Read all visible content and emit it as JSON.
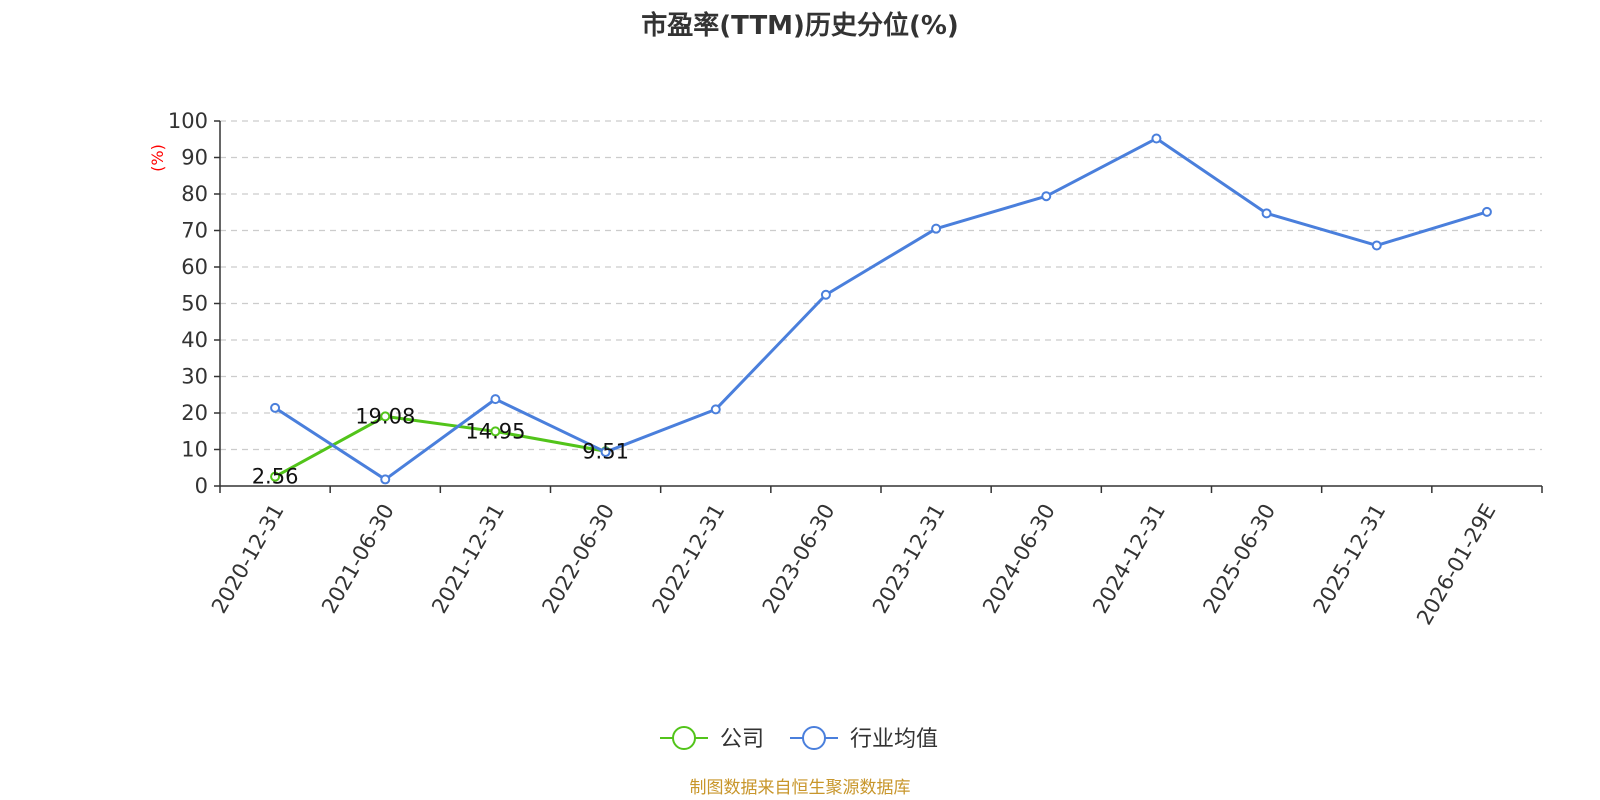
{
  "chart_data": {
    "type": "line",
    "title": "市盈率(TTM)历史分位(%)",
    "ylabel": "(%)",
    "xlabel": "",
    "ylim": [
      0,
      100
    ],
    "yticks": [
      0,
      10,
      20,
      30,
      40,
      50,
      60,
      70,
      80,
      90,
      100
    ],
    "grid": "horizontal-dashed",
    "legend_position": "bottom-center",
    "categories": [
      "2020-12-31",
      "2021-06-30",
      "2021-12-31",
      "2022-06-30",
      "2022-12-31",
      "2023-06-30",
      "2023-12-31",
      "2024-06-30",
      "2024-12-31",
      "2025-06-30",
      "2025-12-31",
      "2026-01-29E"
    ],
    "series": [
      {
        "name": "公司",
        "color": "#52c41a",
        "values": [
          2.56,
          19.08,
          14.95,
          9.51,
          null,
          null,
          null,
          null,
          null,
          null,
          null,
          null
        ],
        "labels": [
          "2.56",
          "19.08",
          "14.95",
          "9.51"
        ]
      },
      {
        "name": "行业均值",
        "color": "#4a7fdc",
        "values": [
          21.4,
          1.8,
          23.8,
          9.3,
          21.0,
          52.4,
          70.5,
          79.4,
          95.2,
          74.7,
          65.9,
          75.1
        ]
      }
    ],
    "source": "制图数据来自恒生聚源数据库"
  }
}
